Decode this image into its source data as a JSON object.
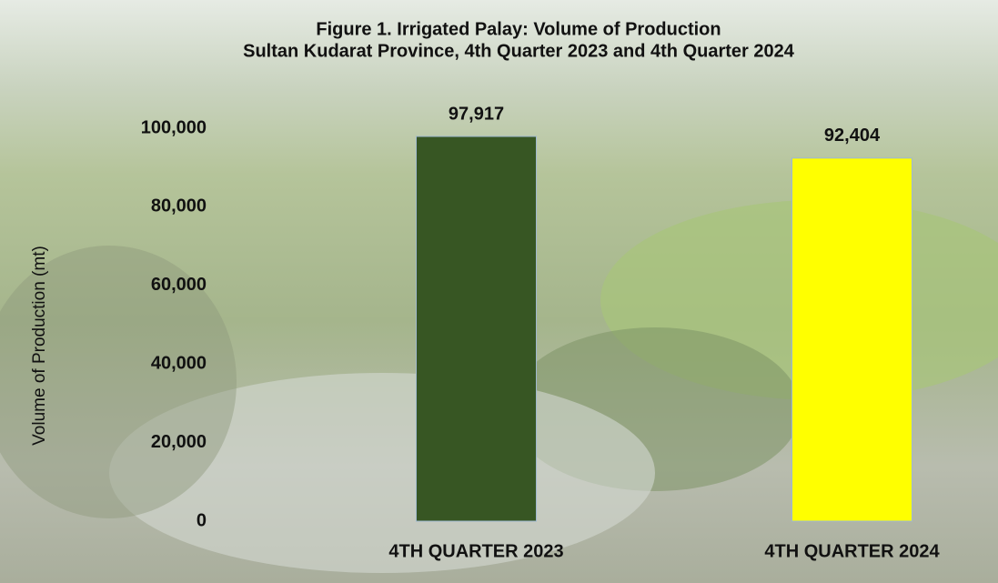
{
  "chart_data": {
    "type": "bar",
    "title": "Figure 1. Irrigated Palay: Volume of Production",
    "subtitle": "Sultan Kudarat Province, 4th Quarter 2023 and 4th Quarter 2024",
    "y_label": "Volume of Production (mt)",
    "categories": [
      "4TH QUARTER 2023",
      "4TH QUARTER 2024"
    ],
    "values": [
      97917,
      92404
    ],
    "value_labels": [
      "97,917",
      "92,404"
    ],
    "colors": [
      "#375623",
      "#ffff00"
    ],
    "ylim": [
      0,
      100000
    ],
    "yticks": [
      0,
      {
        "value": 20000,
        "label": "20,000"
      },
      {
        "value": 40000,
        "label": "40,000"
      },
      {
        "value": 60000,
        "label": "60,000"
      },
      {
        "value": 80000,
        "label": "80,000"
      },
      {
        "value": 100000,
        "label": "100,000"
      }
    ],
    "grid": false
  }
}
